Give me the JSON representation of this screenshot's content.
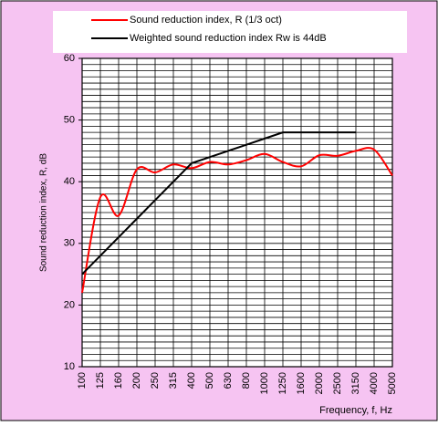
{
  "chart_data": {
    "type": "line",
    "ylabel": "Sound reduction index, R, dB",
    "xlabel": "Frequency, f, Hz",
    "categories": [
      "100",
      "125",
      "160",
      "200",
      "250",
      "315",
      "400",
      "500",
      "630",
      "800",
      "1000",
      "1250",
      "1600",
      "2000",
      "2500",
      "3150",
      "4000",
      "5000"
    ],
    "series": [
      {
        "name": "Sound reduction index, R (1/3 oct)",
        "color": "#ff0000",
        "smooth": true,
        "values": [
          22,
          37.5,
          34.5,
          42,
          41.5,
          42.8,
          42.2,
          43.2,
          42.8,
          43.5,
          44.5,
          43.2,
          42.5,
          44.3,
          44.2,
          45,
          45.2,
          41
        ]
      },
      {
        "name": "Weighted sound reduction index Rw is 44dB",
        "color": "#000000",
        "smooth": false,
        "values": [
          25,
          28,
          31,
          34,
          37,
          40,
          43,
          44,
          45,
          46,
          47,
          48,
          48,
          48,
          48,
          48,
          null,
          null
        ]
      }
    ],
    "ylim": [
      10,
      60
    ],
    "yticks": [
      10,
      20,
      30,
      40,
      50,
      60
    ],
    "y_grid": [
      10,
      11,
      12,
      13,
      14,
      15,
      16,
      17,
      18,
      19,
      20,
      21,
      22,
      23,
      24,
      25,
      26,
      27,
      28,
      29,
      30,
      31,
      32,
      33,
      34,
      35,
      36,
      37,
      38,
      39,
      40,
      41,
      42,
      43,
      44,
      45,
      46,
      47,
      48,
      49,
      50,
      51,
      52,
      53,
      54,
      55,
      56,
      57,
      58,
      59,
      60
    ],
    "grid": true,
    "background": "#f6c4f2"
  }
}
